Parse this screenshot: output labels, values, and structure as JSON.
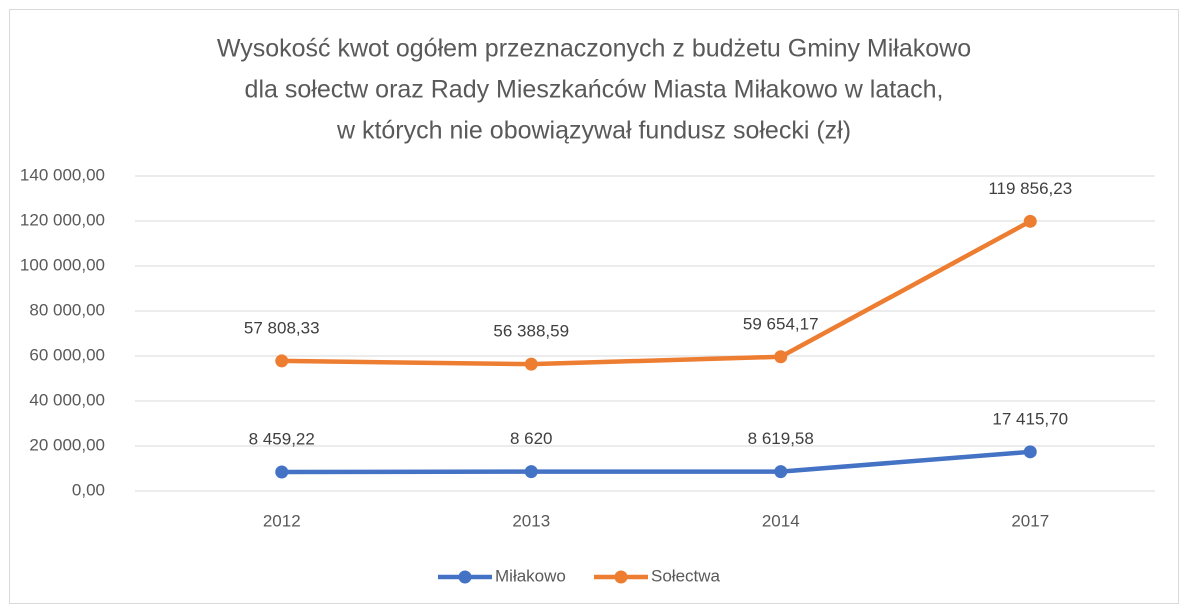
{
  "chart_data": {
    "type": "line",
    "title": [
      "Wysokość kwot ogółem przeznaczonych z budżetu Gminy Miłakowo",
      "dla sołectw oraz Rady Mieszkańców Miasta Miłakowo w latach,",
      "w których nie obowiązywał fundusz sołecki (zł)"
    ],
    "categories": [
      "2012",
      "2013",
      "2014",
      "2017"
    ],
    "series": [
      {
        "name": "Miłakowo",
        "color": "#4472c4",
        "values": [
          8459.22,
          8620,
          8619.58,
          17415.7
        ],
        "value_labels": [
          "8 459,22",
          "8 620",
          "8 619,58",
          "17 415,70"
        ]
      },
      {
        "name": "Sołectwa",
        "color": "#ed7d31",
        "values": [
          57808.33,
          56388.59,
          59654.17,
          119856.23
        ],
        "value_labels": [
          "57 808,33",
          "56 388,59",
          "59 654,17",
          "119 856,23"
        ]
      }
    ],
    "ylim": [
      0,
      140000
    ],
    "yticks": [
      {
        "value": 0,
        "label": "0,00"
      },
      {
        "value": 20000,
        "label": "20 000,00"
      },
      {
        "value": 40000,
        "label": "40 000,00"
      },
      {
        "value": 60000,
        "label": "60 000,00"
      },
      {
        "value": 80000,
        "label": "80 000,00"
      },
      {
        "value": 100000,
        "label": "100 000,00"
      },
      {
        "value": 120000,
        "label": "120 000,00"
      },
      {
        "value": 140000,
        "label": "140 000,00"
      }
    ],
    "grid": true,
    "legend": "bottom"
  }
}
